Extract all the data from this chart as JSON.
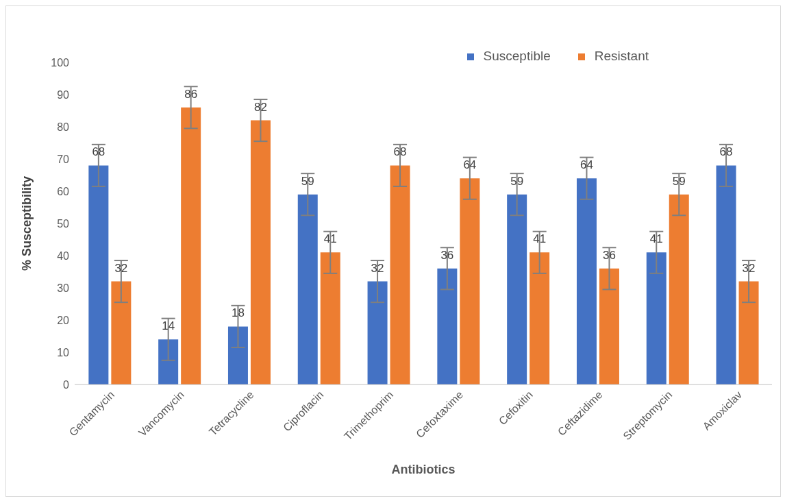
{
  "chart_data": {
    "type": "bar",
    "xlabel": "Antibiotics",
    "ylabel": "% Susceptibility",
    "categories": [
      "Gentamycin",
      "Vancomycin",
      "Tetracycline",
      "Ciproflacin",
      "Trimethoprim",
      "Cefoxtaxime",
      "Cefoxitin",
      "Ceftazidime",
      "Streptomycin",
      "Amoxiclav"
    ],
    "series": [
      {
        "name": "Susceptible",
        "color": "#4472c4",
        "values": [
          68,
          14,
          18,
          59,
          32,
          36,
          59,
          64,
          41,
          68
        ],
        "errors": [
          6.5,
          6.5,
          6.5,
          6.5,
          6.5,
          6.5,
          6.5,
          6.5,
          6.5,
          6.5
        ]
      },
      {
        "name": "Resistant",
        "color": "#ed7d31",
        "values": [
          32,
          86,
          82,
          41,
          68,
          64,
          41,
          36,
          59,
          32
        ],
        "errors": [
          6.5,
          6.5,
          6.5,
          6.5,
          6.5,
          6.5,
          6.5,
          6.5,
          6.5,
          6.5
        ]
      }
    ],
    "ylim": [
      0,
      100
    ],
    "yticks": [
      0,
      10,
      20,
      30,
      40,
      50,
      60,
      70,
      80,
      90,
      100
    ],
    "grid": false,
    "legend": "top right",
    "data_labels": true
  }
}
